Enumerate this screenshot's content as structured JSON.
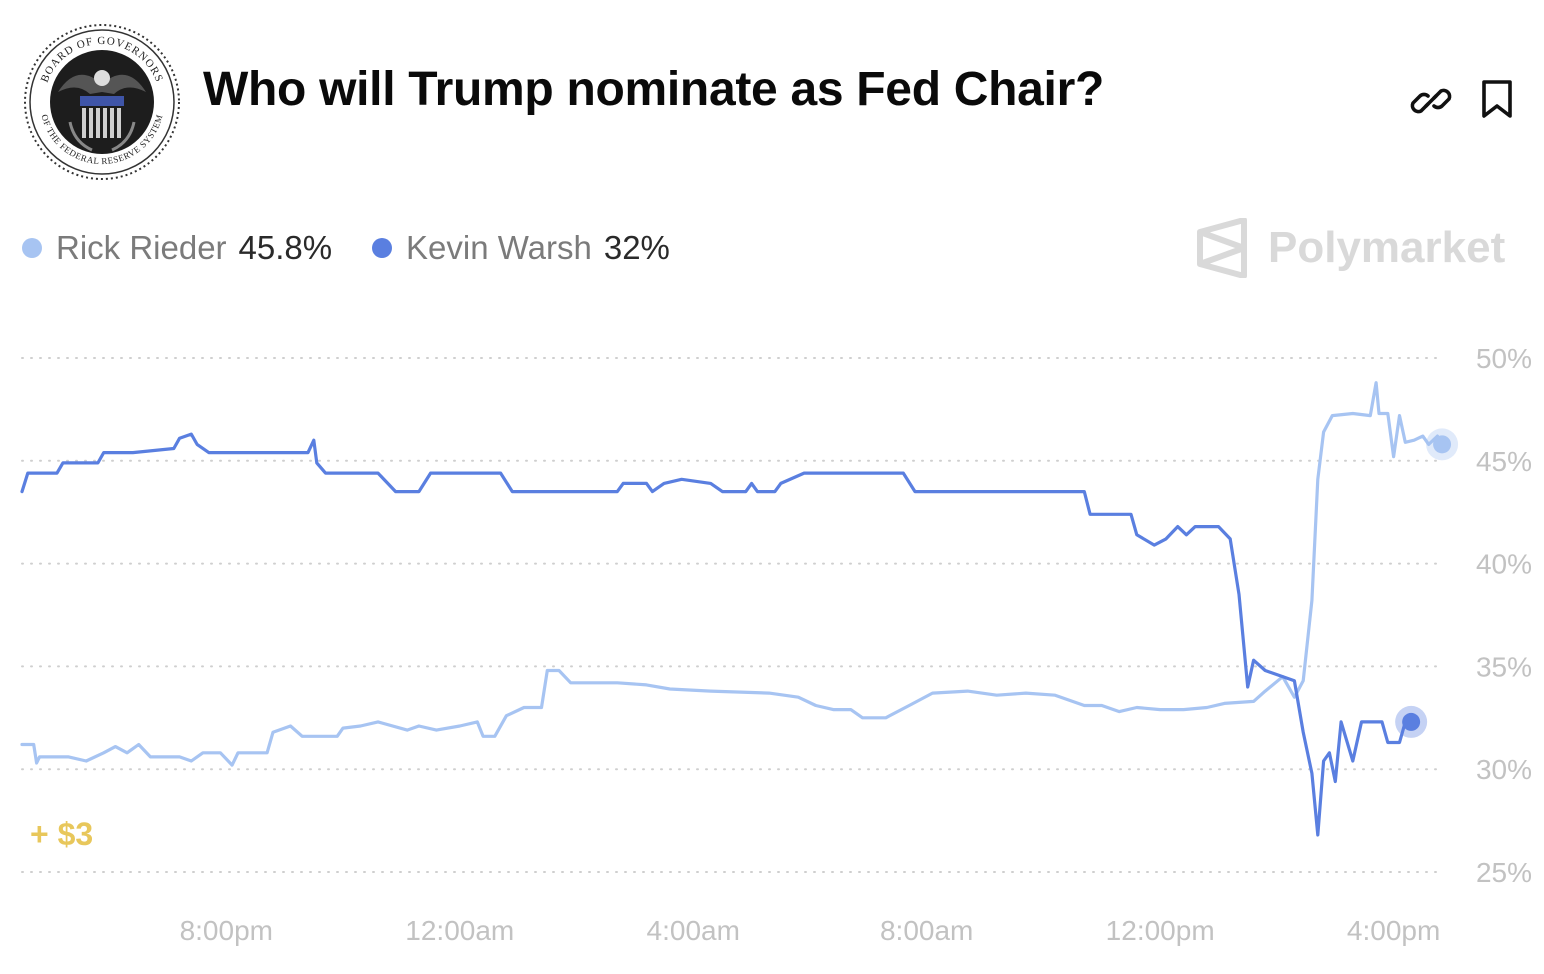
{
  "header": {
    "title": "Who will Trump nominate as Fed Chair?",
    "seal_text": "BOARD OF GOVERNORS OF THE FEDERAL RESERVE SYSTEM",
    "link_icon": "link-icon",
    "bookmark_icon": "bookmark-icon"
  },
  "legend": [
    {
      "name": "Rick Rieder",
      "value": "45.8%",
      "color": "#a7c4f2"
    },
    {
      "name": "Kevin Warsh",
      "value": "32%",
      "color": "#5a7fe0"
    }
  ],
  "brand": {
    "name": "Polymarket",
    "icon": "polymarket-logo-icon"
  },
  "bonus": "+ $3",
  "chart_data": {
    "type": "line",
    "title": "Who will Trump nominate as Fed Chair?",
    "xlabel": "",
    "ylabel": "",
    "x_tick_labels": [
      "8:00pm",
      "12:00am",
      "4:00am",
      "8:00am",
      "12:00pm",
      "4:00pm"
    ],
    "x_tick_hours": [
      20,
      24,
      28,
      32,
      36,
      40
    ],
    "xlim": [
      16.5,
      41
    ],
    "y_tick_labels": [
      "25%",
      "30%",
      "35%",
      "40%",
      "45%",
      "50%"
    ],
    "y_ticks": [
      25,
      30,
      35,
      40,
      45,
      50
    ],
    "ylim": [
      25,
      50
    ],
    "grid": "horizontal dotted",
    "legend_position": "top-left",
    "series": [
      {
        "name": "Rick Rieder",
        "color": "#a7c4f2",
        "points": [
          [
            16.5,
            31.2
          ],
          [
            16.7,
            31.2
          ],
          [
            16.75,
            30.3
          ],
          [
            16.8,
            30.6
          ],
          [
            17.3,
            30.6
          ],
          [
            17.6,
            30.4
          ],
          [
            17.9,
            30.8
          ],
          [
            18.1,
            31.1
          ],
          [
            18.3,
            30.8
          ],
          [
            18.5,
            31.2
          ],
          [
            18.7,
            30.6
          ],
          [
            19.2,
            30.6
          ],
          [
            19.4,
            30.4
          ],
          [
            19.6,
            30.8
          ],
          [
            19.9,
            30.8
          ],
          [
            20.1,
            30.2
          ],
          [
            20.2,
            30.8
          ],
          [
            20.7,
            30.8
          ],
          [
            20.8,
            31.8
          ],
          [
            21.1,
            32.1
          ],
          [
            21.3,
            31.6
          ],
          [
            21.9,
            31.6
          ],
          [
            22.0,
            32.0
          ],
          [
            22.3,
            32.1
          ],
          [
            22.6,
            32.3
          ],
          [
            23.1,
            31.9
          ],
          [
            23.3,
            32.1
          ],
          [
            23.6,
            31.9
          ],
          [
            24.0,
            32.1
          ],
          [
            24.3,
            32.3
          ],
          [
            24.4,
            31.6
          ],
          [
            24.6,
            31.6
          ],
          [
            24.8,
            32.6
          ],
          [
            25.1,
            33.0
          ],
          [
            25.4,
            33.0
          ],
          [
            25.5,
            34.8
          ],
          [
            25.7,
            34.8
          ],
          [
            25.9,
            34.2
          ],
          [
            26.7,
            34.2
          ],
          [
            27.2,
            34.1
          ],
          [
            27.6,
            33.9
          ],
          [
            28.3,
            33.8
          ],
          [
            29.3,
            33.7
          ],
          [
            29.8,
            33.5
          ],
          [
            30.1,
            33.1
          ],
          [
            30.4,
            32.9
          ],
          [
            30.7,
            32.9
          ],
          [
            30.9,
            32.5
          ],
          [
            31.3,
            32.5
          ],
          [
            31.7,
            33.1
          ],
          [
            32.1,
            33.7
          ],
          [
            32.7,
            33.8
          ],
          [
            33.2,
            33.6
          ],
          [
            33.7,
            33.7
          ],
          [
            34.2,
            33.6
          ],
          [
            34.7,
            33.1
          ],
          [
            35.0,
            33.1
          ],
          [
            35.3,
            32.8
          ],
          [
            35.6,
            33.0
          ],
          [
            36.0,
            32.9
          ],
          [
            36.4,
            32.9
          ],
          [
            36.8,
            33.0
          ],
          [
            37.1,
            33.2
          ],
          [
            37.6,
            33.3
          ],
          [
            37.8,
            33.8
          ],
          [
            38.1,
            34.5
          ],
          [
            38.3,
            33.5
          ],
          [
            38.45,
            34.3
          ],
          [
            38.6,
            38.2
          ],
          [
            38.7,
            44.1
          ],
          [
            38.8,
            46.4
          ],
          [
            38.95,
            47.2
          ],
          [
            39.3,
            47.3
          ],
          [
            39.6,
            47.2
          ],
          [
            39.7,
            48.8
          ],
          [
            39.75,
            47.3
          ],
          [
            39.9,
            47.3
          ],
          [
            40.0,
            45.2
          ],
          [
            40.1,
            47.2
          ],
          [
            40.2,
            45.9
          ],
          [
            40.35,
            46.0
          ],
          [
            40.5,
            46.2
          ],
          [
            40.6,
            45.8
          ],
          [
            40.75,
            46.2
          ],
          [
            40.83,
            45.8
          ]
        ]
      },
      {
        "name": "Kevin Warsh",
        "color": "#5a7fe0",
        "points": [
          [
            16.5,
            43.5
          ],
          [
            16.6,
            44.4
          ],
          [
            17.1,
            44.4
          ],
          [
            17.2,
            44.9
          ],
          [
            17.8,
            44.9
          ],
          [
            17.9,
            45.4
          ],
          [
            18.2,
            45.4
          ],
          [
            18.4,
            45.4
          ],
          [
            19.1,
            45.6
          ],
          [
            19.2,
            46.1
          ],
          [
            19.4,
            46.3
          ],
          [
            19.5,
            45.8
          ],
          [
            19.7,
            45.4
          ],
          [
            20.5,
            45.4
          ],
          [
            21.4,
            45.4
          ],
          [
            21.5,
            46.0
          ],
          [
            21.55,
            44.9
          ],
          [
            21.7,
            44.4
          ],
          [
            21.8,
            44.4
          ],
          [
            22.6,
            44.4
          ],
          [
            22.9,
            43.5
          ],
          [
            23.3,
            43.5
          ],
          [
            23.5,
            44.4
          ],
          [
            24.7,
            44.4
          ],
          [
            24.9,
            43.5
          ],
          [
            26.7,
            43.5
          ],
          [
            26.8,
            43.9
          ],
          [
            27.2,
            43.9
          ],
          [
            27.3,
            43.5
          ],
          [
            27.5,
            43.9
          ],
          [
            27.8,
            44.1
          ],
          [
            28.3,
            43.9
          ],
          [
            28.5,
            43.5
          ],
          [
            28.9,
            43.5
          ],
          [
            29.0,
            43.9
          ],
          [
            29.1,
            43.5
          ],
          [
            29.4,
            43.5
          ],
          [
            29.5,
            43.9
          ],
          [
            29.9,
            44.4
          ],
          [
            31.6,
            44.4
          ],
          [
            31.8,
            43.5
          ],
          [
            34.7,
            43.5
          ],
          [
            34.8,
            42.4
          ],
          [
            35.5,
            42.4
          ],
          [
            35.6,
            41.4
          ],
          [
            35.9,
            40.9
          ],
          [
            36.1,
            41.2
          ],
          [
            36.3,
            41.8
          ],
          [
            36.45,
            41.4
          ],
          [
            36.6,
            41.8
          ],
          [
            37.0,
            41.8
          ],
          [
            37.2,
            41.2
          ],
          [
            37.35,
            38.5
          ],
          [
            37.5,
            34.0
          ],
          [
            37.6,
            35.3
          ],
          [
            37.8,
            34.8
          ],
          [
            38.3,
            34.3
          ],
          [
            38.45,
            31.8
          ],
          [
            38.6,
            29.8
          ],
          [
            38.7,
            26.8
          ],
          [
            38.8,
            30.4
          ],
          [
            38.9,
            30.8
          ],
          [
            39.0,
            29.4
          ],
          [
            39.1,
            32.3
          ],
          [
            39.3,
            30.4
          ],
          [
            39.45,
            32.3
          ],
          [
            39.6,
            32.3
          ],
          [
            39.8,
            32.3
          ],
          [
            39.9,
            31.3
          ],
          [
            40.1,
            31.3
          ],
          [
            40.2,
            32.3
          ],
          [
            40.3,
            32.3
          ]
        ]
      }
    ]
  }
}
